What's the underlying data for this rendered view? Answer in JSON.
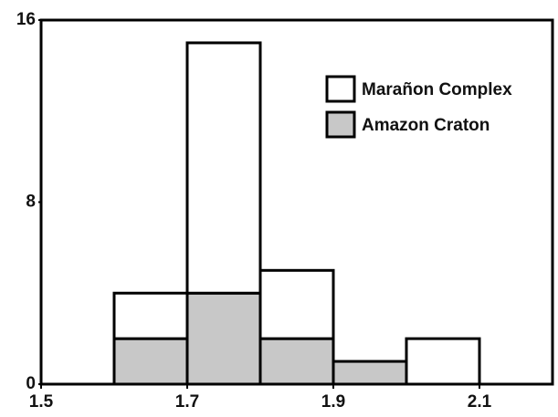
{
  "chart_data": {
    "type": "histogram",
    "bins": [
      1.6,
      1.7,
      1.8,
      1.9,
      2.0,
      2.1
    ],
    "series": [
      {
        "name": "Marañon Complex",
        "color": "#ffffff",
        "values": [
          2,
          11,
          3,
          0,
          2
        ]
      },
      {
        "name": "Amazon Craton",
        "color": "#c8c8c8",
        "values": [
          2,
          4,
          2,
          1,
          0
        ]
      }
    ],
    "stacked": true,
    "xlim": [
      1.5,
      2.2
    ],
    "xticks": [
      1.5,
      1.7,
      1.9,
      2.1
    ],
    "ylim": [
      0,
      16
    ],
    "yticks": [
      0,
      8,
      16
    ],
    "legend": "upper right"
  }
}
